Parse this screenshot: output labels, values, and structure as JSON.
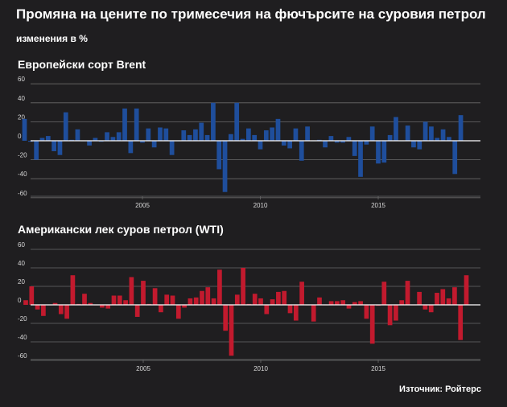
{
  "title": "Промяна на цените по тримесечия на фючърсите на суровия петрол",
  "subtitle": "изменения в %",
  "source": "Източник: Ройтерс",
  "colors": {
    "background": "#1f1e20",
    "brent": "#1f4e9c",
    "wti": "#c21a2e",
    "grid": "#6a6a6a",
    "zero": "#ffffff"
  },
  "chart_data": [
    {
      "type": "bar",
      "title": "Европейски сорт Brent",
      "ylim": [
        -70,
        60
      ],
      "yticks": [
        -60,
        -40,
        -20,
        0,
        20,
        40,
        60
      ],
      "xticks": [
        {
          "x": 2005,
          "label": "2005"
        },
        {
          "x": 2010,
          "label": "2010"
        },
        {
          "x": 2015,
          "label": "2015"
        }
      ],
      "x_start": 2000.0,
      "x_step": 0.25,
      "series": [
        {
          "values": [
            23,
            -1,
            -20,
            3,
            5,
            -11,
            -15,
            30,
            1,
            12,
            0,
            -5,
            3,
            -1,
            9,
            4,
            9,
            34,
            -13,
            34,
            -2,
            13,
            -7,
            14,
            13,
            -15,
            0,
            11,
            6,
            12,
            19,
            6,
            40,
            -30,
            -54,
            7,
            40,
            2,
            13,
            6,
            -9,
            11,
            14,
            23,
            -5,
            -8,
            13,
            -21,
            15,
            0,
            1,
            -7,
            5,
            -2,
            -2,
            4,
            -16,
            -38,
            -4,
            15,
            -24,
            -23,
            6,
            25,
            0,
            16,
            -7,
            -9,
            20,
            15,
            3,
            12,
            4,
            -35,
            27
          ]
        }
      ]
    },
    {
      "type": "bar",
      "title": "Американски лек суров петрол (WTI)",
      "ylim": [
        -70,
        60
      ],
      "yticks": [
        -60,
        -40,
        -20,
        0,
        20,
        40,
        60
      ],
      "xticks": [
        {
          "x": 2005,
          "label": "2005"
        },
        {
          "x": 2010,
          "label": "2010"
        },
        {
          "x": 2015,
          "label": "2015"
        }
      ],
      "x_start": 2000.0,
      "x_step": 0.25,
      "series": [
        {
          "values": [
            5,
            20,
            -5,
            -12,
            0,
            2,
            -10,
            -15,
            32,
            1,
            12,
            2,
            0,
            -3,
            -4,
            10,
            10,
            5,
            30,
            -13,
            26,
            1,
            18,
            -8,
            11,
            10,
            -15,
            -3,
            7,
            8,
            15,
            19,
            7,
            38,
            -28,
            -55,
            11,
            40,
            1,
            12,
            7,
            -10,
            6,
            14,
            15,
            -9,
            -17,
            25,
            0,
            -18,
            8,
            0,
            4,
            4,
            5,
            -4,
            3,
            4,
            -15,
            -42,
            -1,
            25,
            -22,
            -17,
            5,
            26,
            0,
            14,
            -5,
            -8,
            13,
            17,
            7,
            19,
            -38,
            32
          ]
        }
      ]
    }
  ]
}
